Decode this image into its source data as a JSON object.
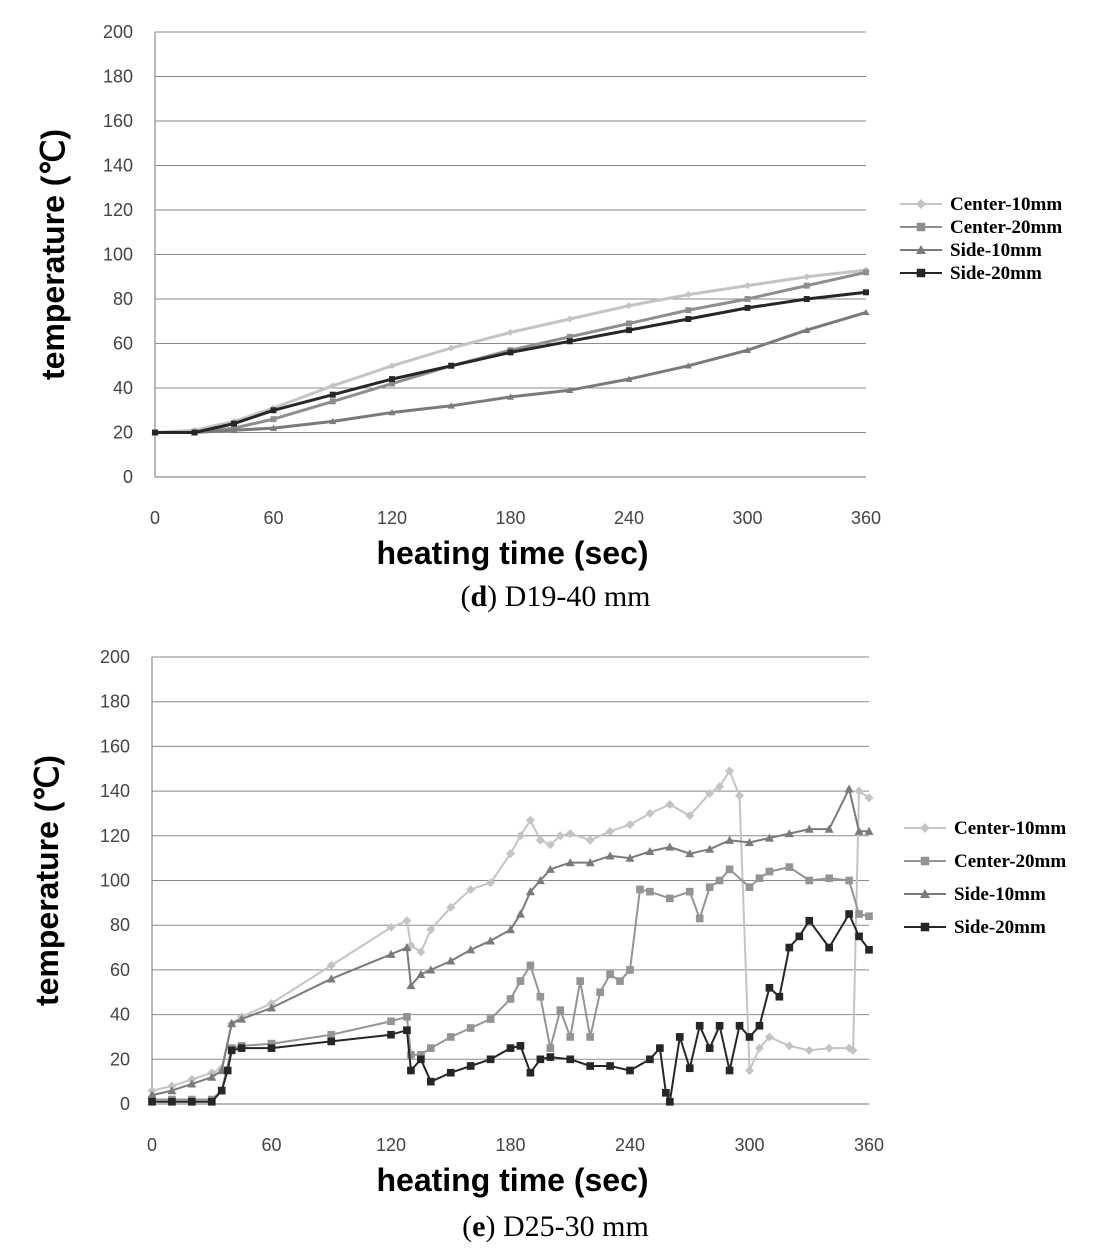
{
  "chart_data": [
    {
      "type": "line",
      "caption": {
        "letter": "d",
        "rest": ") D19-40 mm",
        "open": "("
      },
      "xlabel": "heating time (sec)",
      "ylabel": "temperature (℃)",
      "xlim": [
        0,
        360
      ],
      "ylim": [
        0,
        200
      ],
      "xticks": [
        0,
        60,
        120,
        180,
        240,
        300,
        360
      ],
      "yticks": [
        0,
        20,
        40,
        60,
        80,
        100,
        120,
        140,
        160,
        180,
        200
      ],
      "legend_position": "right",
      "grid": true,
      "series": [
        {
          "name": "Center-10mm",
          "color": "#c4c4c4",
          "marker": "diamond",
          "x": [
            0,
            20,
            40,
            60,
            90,
            120,
            150,
            180,
            210,
            240,
            270,
            300,
            330,
            360
          ],
          "y": [
            20,
            21,
            25,
            31,
            41,
            50,
            58,
            65,
            71,
            77,
            82,
            86,
            90,
            93
          ]
        },
        {
          "name": "Center-20mm",
          "color": "#8e8e8e",
          "marker": "square",
          "x": [
            0,
            20,
            40,
            60,
            90,
            120,
            150,
            180,
            210,
            240,
            270,
            300,
            330,
            360
          ],
          "y": [
            20,
            20,
            22,
            26,
            34,
            42,
            50,
            57,
            63,
            69,
            75,
            80,
            86,
            92
          ]
        },
        {
          "name": "Side-10mm",
          "color": "#7a7a7a",
          "marker": "triangle",
          "x": [
            0,
            20,
            40,
            60,
            90,
            120,
            150,
            180,
            210,
            240,
            270,
            300,
            330,
            360
          ],
          "y": [
            20,
            20,
            21,
            22,
            25,
            29,
            32,
            36,
            39,
            44,
            50,
            57,
            66,
            74
          ]
        },
        {
          "name": "Side-20mm",
          "color": "#262626",
          "marker": "square",
          "x": [
            0,
            20,
            40,
            60,
            90,
            120,
            150,
            180,
            210,
            240,
            270,
            300,
            330,
            360
          ],
          "y": [
            20,
            20,
            24,
            30,
            37,
            44,
            50,
            56,
            61,
            66,
            71,
            76,
            80,
            83
          ]
        }
      ]
    },
    {
      "type": "line",
      "caption": {
        "letter": "e",
        "rest": ") D25-30 mm",
        "open": "("
      },
      "xlabel": "heating time (sec)",
      "ylabel": "temperature (℃)",
      "xlim": [
        0,
        360
      ],
      "ylim": [
        0,
        200
      ],
      "xticks": [
        0,
        60,
        120,
        180,
        240,
        300,
        360
      ],
      "yticks": [
        0,
        20,
        40,
        60,
        80,
        100,
        120,
        140,
        160,
        180,
        200
      ],
      "legend_position": "right",
      "grid": true,
      "series": [
        {
          "name": "Center-10mm",
          "color": "#c4c4c4",
          "marker": "diamond",
          "x": [
            0,
            10,
            20,
            30,
            35,
            40,
            45,
            60,
            90,
            120,
            128,
            130,
            135,
            140,
            150,
            160,
            170,
            180,
            185,
            190,
            195,
            200,
            205,
            210,
            220,
            230,
            240,
            250,
            260,
            270,
            280,
            285,
            290,
            295,
            300,
            305,
            310,
            320,
            330,
            340,
            350,
            352,
            355,
            360
          ],
          "y": [
            6,
            8,
            11,
            14,
            16,
            36,
            39,
            45,
            62,
            79,
            82,
            71,
            68,
            78,
            88,
            96,
            99,
            112,
            120,
            127,
            118,
            116,
            120,
            121,
            118,
            122,
            125,
            130,
            134,
            129,
            139,
            142,
            149,
            138,
            15,
            25,
            30,
            26,
            24,
            25,
            25,
            24,
            140,
            137
          ]
        },
        {
          "name": "Center-20mm",
          "color": "#949494",
          "marker": "square",
          "x": [
            0,
            10,
            20,
            30,
            35,
            40,
            45,
            60,
            90,
            120,
            128,
            130,
            135,
            140,
            150,
            160,
            170,
            180,
            185,
            190,
            195,
            200,
            205,
            210,
            215,
            220,
            225,
            230,
            235,
            240,
            245,
            250,
            260,
            270,
            275,
            280,
            285,
            290,
            300,
            305,
            310,
            320,
            330,
            340,
            350,
            355,
            360
          ],
          "y": [
            2,
            2,
            2,
            2,
            6,
            25,
            26,
            27,
            31,
            37,
            39,
            22,
            22,
            25,
            30,
            34,
            38,
            47,
            55,
            62,
            48,
            25,
            42,
            30,
            55,
            30,
            50,
            58,
            55,
            60,
            96,
            95,
            92,
            95,
            83,
            97,
            100,
            105,
            97,
            101,
            104,
            106,
            100,
            101,
            100,
            85,
            84
          ]
        },
        {
          "name": "Side-10mm",
          "color": "#7a7a7a",
          "marker": "triangle",
          "x": [
            0,
            10,
            20,
            30,
            35,
            40,
            45,
            60,
            90,
            120,
            128,
            130,
            135,
            140,
            150,
            160,
            170,
            180,
            185,
            190,
            195,
            200,
            210,
            220,
            230,
            240,
            250,
            260,
            270,
            280,
            290,
            300,
            310,
            320,
            330,
            340,
            350,
            355,
            360
          ],
          "y": [
            4,
            6,
            9,
            12,
            15,
            36,
            38,
            43,
            56,
            67,
            70,
            53,
            58,
            60,
            64,
            69,
            73,
            78,
            85,
            95,
            100,
            105,
            108,
            108,
            111,
            110,
            113,
            115,
            112,
            114,
            118,
            117,
            119,
            121,
            123,
            123,
            141,
            122,
            122
          ]
        },
        {
          "name": "Side-20mm",
          "color": "#262626",
          "marker": "square",
          "x": [
            0,
            10,
            20,
            30,
            35,
            38,
            40,
            45,
            60,
            90,
            120,
            128,
            130,
            135,
            140,
            150,
            160,
            170,
            180,
            185,
            190,
            195,
            200,
            210,
            220,
            230,
            240,
            250,
            255,
            258,
            260,
            265,
            270,
            275,
            280,
            285,
            290,
            295,
            300,
            305,
            310,
            315,
            320,
            325,
            330,
            340,
            350,
            355,
            360
          ],
          "y": [
            1,
            1,
            1,
            1,
            6,
            15,
            24,
            25,
            25,
            28,
            31,
            33,
            15,
            20,
            10,
            14,
            17,
            20,
            25,
            26,
            14,
            20,
            21,
            20,
            17,
            17,
            15,
            20,
            25,
            5,
            1,
            30,
            16,
            35,
            25,
            35,
            15,
            35,
            30,
            35,
            52,
            48,
            70,
            75,
            82,
            70,
            85,
            75,
            69
          ]
        }
      ]
    }
  ]
}
